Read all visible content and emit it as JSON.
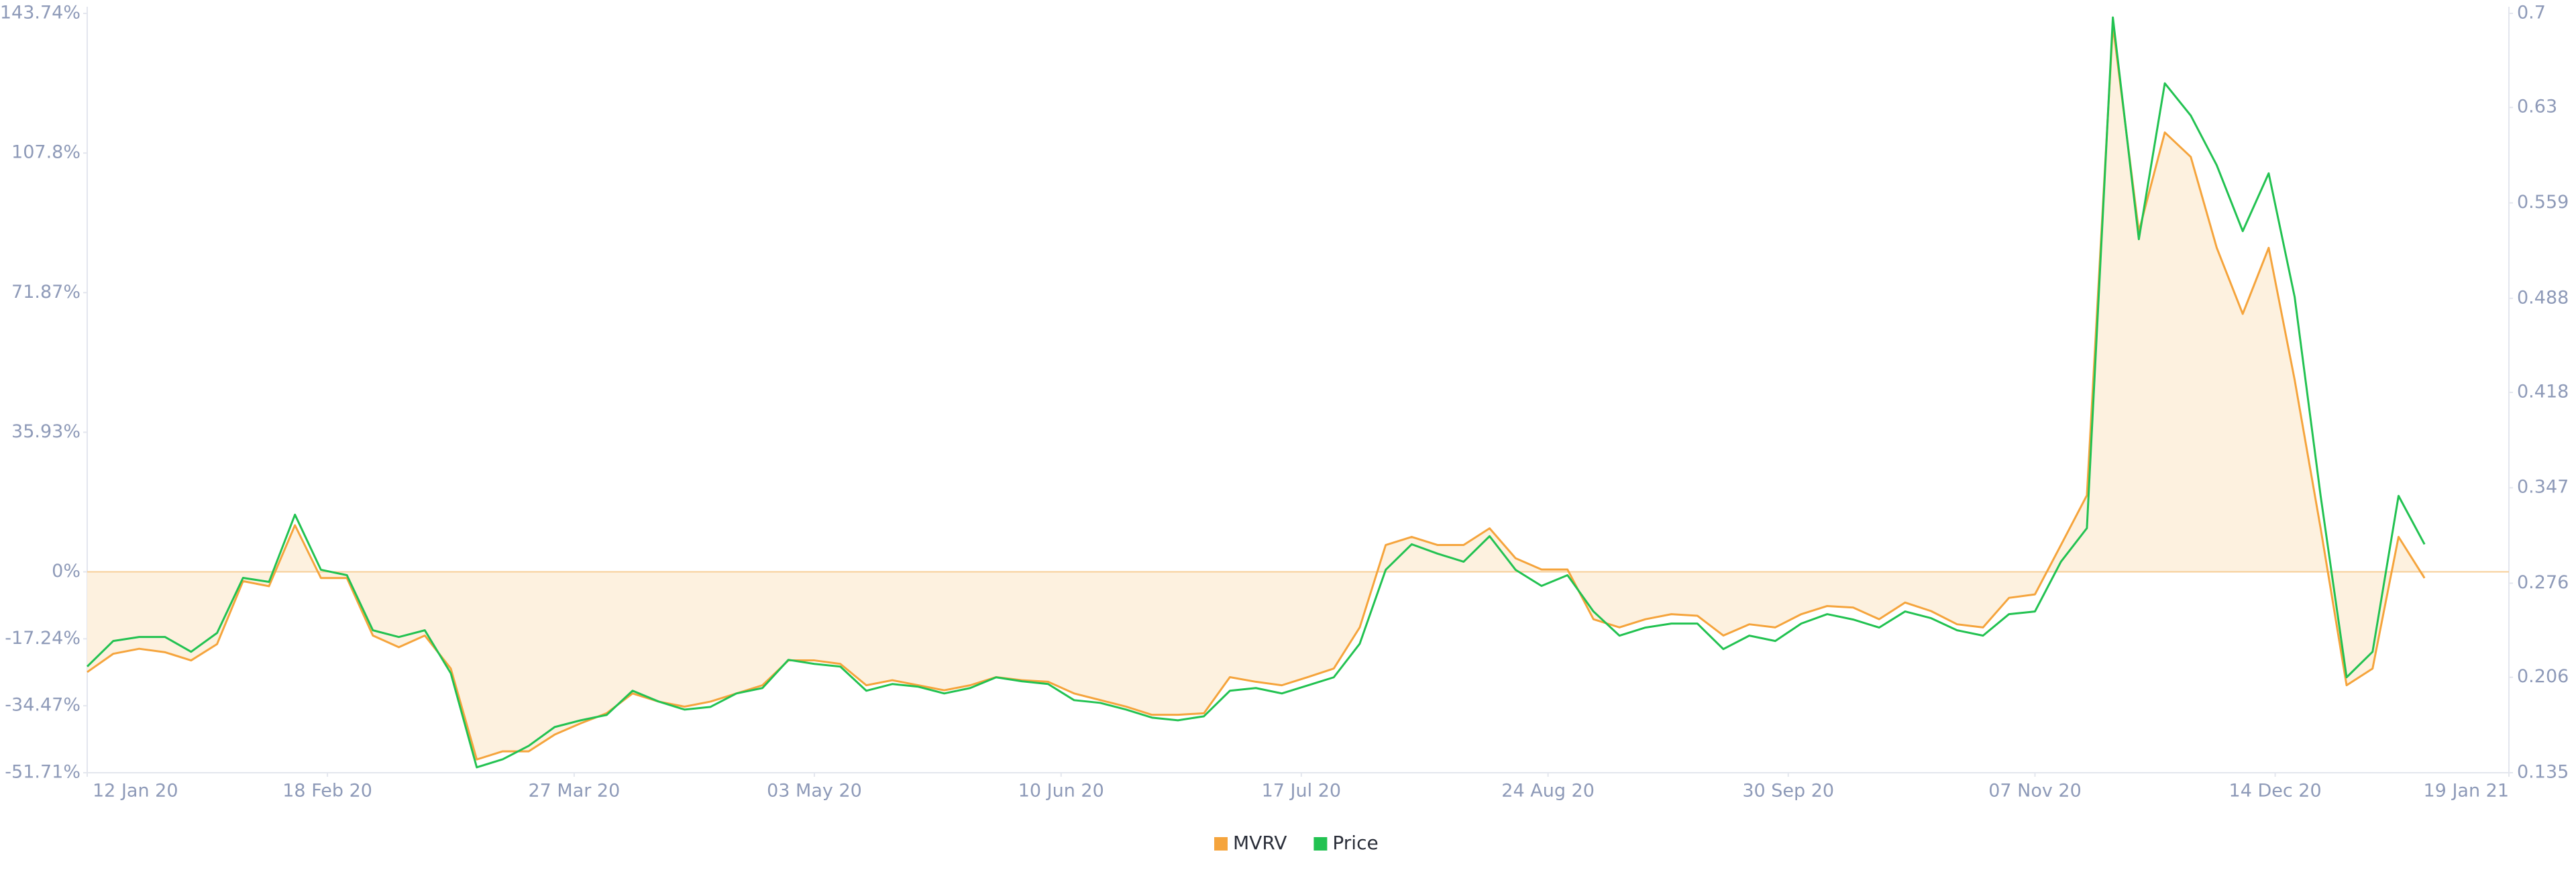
{
  "chart_data": {
    "type": "line",
    "x": [
      "2020-01-12",
      "2020-01-16",
      "2020-01-20",
      "2020-01-24",
      "2020-01-28",
      "2020-02-01",
      "2020-02-05",
      "2020-02-09",
      "2020-02-13",
      "2020-02-17",
      "2020-02-21",
      "2020-02-25",
      "2020-02-29",
      "2020-03-04",
      "2020-03-08",
      "2020-03-12",
      "2020-03-16",
      "2020-03-20",
      "2020-03-24",
      "2020-03-28",
      "2020-04-01",
      "2020-04-05",
      "2020-04-09",
      "2020-04-13",
      "2020-04-17",
      "2020-04-21",
      "2020-04-25",
      "2020-04-29",
      "2020-05-03",
      "2020-05-07",
      "2020-05-11",
      "2020-05-15",
      "2020-05-19",
      "2020-05-23",
      "2020-05-27",
      "2020-05-31",
      "2020-06-04",
      "2020-06-08",
      "2020-06-12",
      "2020-06-16",
      "2020-06-20",
      "2020-06-24",
      "2020-06-28",
      "2020-07-02",
      "2020-07-06",
      "2020-07-10",
      "2020-07-14",
      "2020-07-18",
      "2020-07-22",
      "2020-07-26",
      "2020-07-30",
      "2020-08-03",
      "2020-08-07",
      "2020-08-11",
      "2020-08-15",
      "2020-08-19",
      "2020-08-23",
      "2020-08-27",
      "2020-08-31",
      "2020-09-04",
      "2020-09-08",
      "2020-09-12",
      "2020-09-16",
      "2020-09-20",
      "2020-09-24",
      "2020-09-28",
      "2020-10-02",
      "2020-10-06",
      "2020-10-10",
      "2020-10-14",
      "2020-10-18",
      "2020-10-22",
      "2020-10-26",
      "2020-10-30",
      "2020-11-03",
      "2020-11-07",
      "2020-11-11",
      "2020-11-15",
      "2020-11-19",
      "2020-11-23",
      "2020-11-27",
      "2020-12-01",
      "2020-12-05",
      "2020-12-09",
      "2020-12-13",
      "2020-12-17",
      "2020-12-21",
      "2020-12-25",
      "2020-12-29",
      "2021-01-02",
      "2021-01-06"
    ],
    "series": [
      {
        "name": "MVRV",
        "color": "#f5a43c",
        "area": true,
        "area_color": "#fdf1df",
        "axis": "y",
        "values": [
          -25.8,
          -21.1,
          -19.8,
          -20.7,
          -22.8,
          -18.6,
          -2.4,
          -3.7,
          12.0,
          -1.6,
          -1.6,
          -16.4,
          -19.4,
          -16.4,
          -24.9,
          -48.3,
          -46.2,
          -46.2,
          -41.9,
          -39.0,
          -36.4,
          -31.3,
          -33.4,
          -34.7,
          -33.4,
          -31.3,
          -29.2,
          -22.8,
          -22.8,
          -23.7,
          -29.2,
          -27.9,
          -29.2,
          -30.5,
          -29.2,
          -27.1,
          -27.9,
          -28.3,
          -31.3,
          -33.0,
          -34.7,
          -36.8,
          -36.8,
          -36.4,
          -27.1,
          -28.3,
          -29.2,
          -27.1,
          -24.9,
          -14.3,
          6.9,
          9.0,
          6.9,
          6.9,
          11.2,
          3.5,
          0.6,
          0.6,
          -12.2,
          -14.3,
          -12.2,
          -10.9,
          -11.3,
          -16.4,
          -13.5,
          -14.3,
          -10.9,
          -8.8,
          -9.2,
          -12.2,
          -7.9,
          -10.1,
          -13.5,
          -14.3,
          -6.7,
          -5.8,
          6.9,
          19.7,
          140.7,
          87.6,
          113.1,
          106.8,
          83.4,
          66.4,
          83.4,
          49.4,
          11.2,
          -29.2,
          -24.9,
          9.0,
          -1.6
        ]
      },
      {
        "name": "Price",
        "color": "#22c251",
        "axis": "y2",
        "values": [
          0.214,
          0.233,
          0.236,
          0.236,
          0.225,
          0.239,
          0.28,
          0.277,
          0.327,
          0.286,
          0.282,
          0.241,
          0.236,
          0.241,
          0.209,
          0.139,
          0.145,
          0.155,
          0.169,
          0.174,
          0.178,
          0.196,
          0.188,
          0.182,
          0.184,
          0.194,
          0.198,
          0.219,
          0.216,
          0.214,
          0.196,
          0.201,
          0.199,
          0.194,
          0.198,
          0.206,
          0.203,
          0.201,
          0.189,
          0.187,
          0.182,
          0.176,
          0.174,
          0.177,
          0.196,
          0.198,
          0.194,
          0.2,
          0.206,
          0.231,
          0.286,
          0.305,
          0.298,
          0.292,
          0.311,
          0.286,
          0.274,
          0.282,
          0.255,
          0.237,
          0.243,
          0.246,
          0.246,
          0.227,
          0.237,
          0.233,
          0.246,
          0.253,
          0.249,
          0.243,
          0.255,
          0.25,
          0.241,
          0.237,
          0.253,
          0.255,
          0.292,
          0.317,
          0.697,
          0.532,
          0.648,
          0.624,
          0.587,
          0.538,
          0.581,
          0.489,
          0.341,
          0.206,
          0.225,
          0.341,
          0.305
        ]
      }
    ],
    "xlim": [
      "2020-01-12",
      "2021-01-19"
    ],
    "xticks": [
      {
        "value": "2020-01-12",
        "label": "12 Jan 20"
      },
      {
        "value": "2020-02-18",
        "label": "18 Feb 20"
      },
      {
        "value": "2020-03-27",
        "label": "27 Mar 20"
      },
      {
        "value": "2020-05-03",
        "label": "03 May 20"
      },
      {
        "value": "2020-06-10",
        "label": "10 Jun 20"
      },
      {
        "value": "2020-07-17",
        "label": "17 Jul 20"
      },
      {
        "value": "2020-08-24",
        "label": "24 Aug 20"
      },
      {
        "value": "2020-09-30",
        "label": "30 Sep 20"
      },
      {
        "value": "2020-11-07",
        "label": "07 Nov 20"
      },
      {
        "value": "2020-12-14",
        "label": "14 Dec 20"
      },
      {
        "value": "2021-01-19",
        "label": "19 Jan 21"
      }
    ],
    "ylim": [
      -51.71,
      143.74
    ],
    "yticks": [
      {
        "value": -51.71,
        "label": "-51.71%"
      },
      {
        "value": -34.47,
        "label": "-34.47%"
      },
      {
        "value": -17.24,
        "label": "-17.24%"
      },
      {
        "value": 0,
        "label": "0%"
      },
      {
        "value": 35.93,
        "label": "35.93%"
      },
      {
        "value": 71.87,
        "label": "71.87%"
      },
      {
        "value": 107.8,
        "label": "107.8%"
      },
      {
        "value": 143.74,
        "label": "143.74%"
      }
    ],
    "y2lim": [
      0.135,
      0.7
    ],
    "y2ticks": [
      0.135,
      0.206,
      0.276,
      0.347,
      0.418,
      0.488,
      0.559,
      0.63,
      0.7
    ],
    "grid": false,
    "legend": "bottom"
  }
}
